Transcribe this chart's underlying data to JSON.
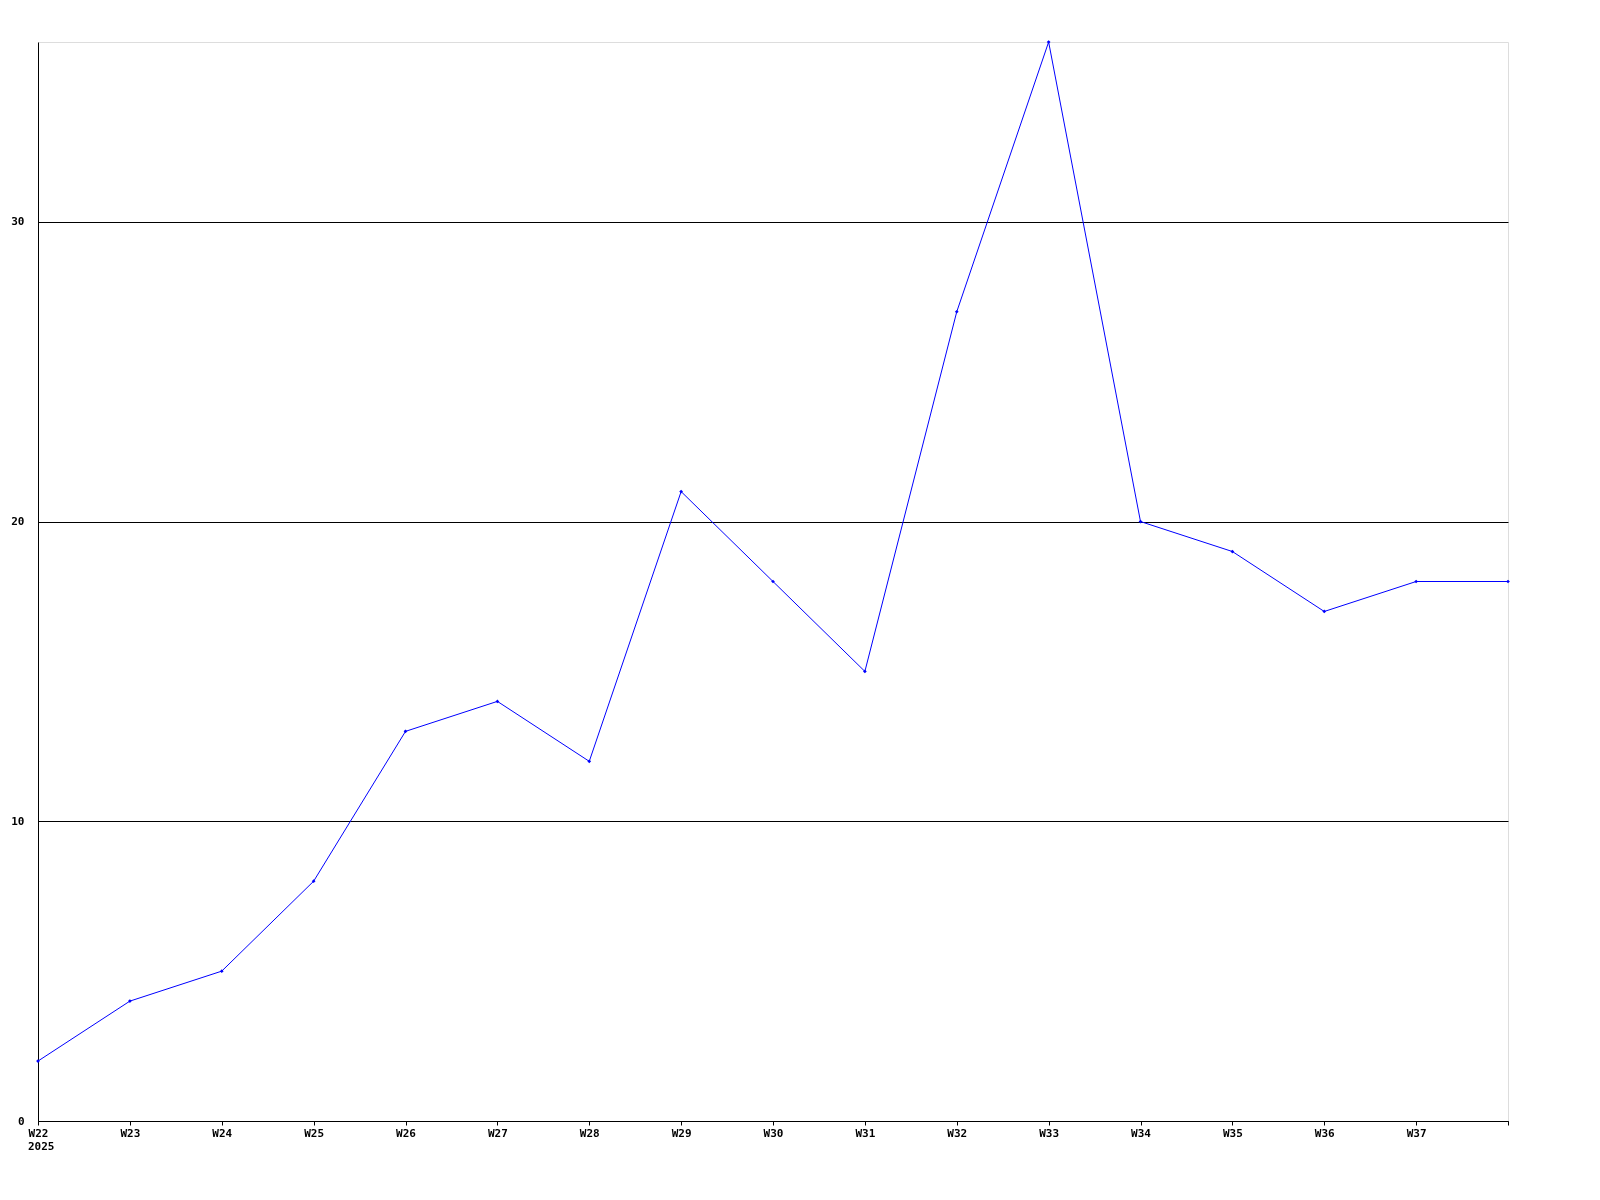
{
  "chart_data": {
    "type": "line",
    "categories": [
      "W22",
      "W23",
      "W24",
      "W25",
      "W26",
      "W27",
      "W28",
      "W29",
      "W30",
      "W31",
      "W32",
      "W33",
      "W34",
      "W35",
      "W36",
      "W37",
      null
    ],
    "series": [
      {
        "color": "#0000ff",
        "values": [
          2,
          4,
          5,
          8,
          13,
          14,
          12,
          21,
          18,
          15,
          27,
          36,
          20,
          19,
          17,
          18,
          18
        ]
      }
    ],
    "ylim": [
      0,
      36
    ],
    "yticks": [
      0,
      10,
      20,
      30
    ],
    "grid": "y",
    "marker": "diamond",
    "line_style": "solid",
    "annotations": [
      "2025"
    ]
  }
}
